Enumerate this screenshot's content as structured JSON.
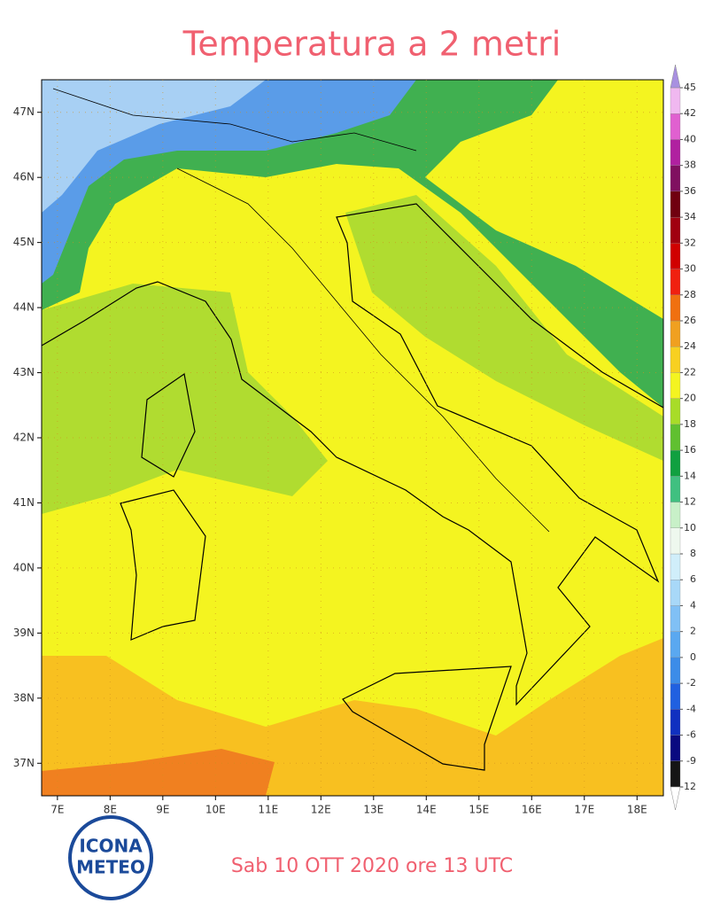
{
  "chart_data": {
    "type": "map",
    "title": "Temperatura a 2 metri",
    "subtitle": "Sab 10 OTT 2020 ore 13 UTC",
    "logo": {
      "line1": "ICONA",
      "line2": "METEO"
    },
    "xlim": [
      6.7,
      18.5
    ],
    "ylim": [
      36.5,
      47.5
    ],
    "xticks": [
      {
        "value": 7,
        "label": "7E"
      },
      {
        "value": 8,
        "label": "8E"
      },
      {
        "value": 9,
        "label": "9E"
      },
      {
        "value": 10,
        "label": "10E"
      },
      {
        "value": 11,
        "label": "11E"
      },
      {
        "value": 12,
        "label": "12E"
      },
      {
        "value": 13,
        "label": "13E"
      },
      {
        "value": 14,
        "label": "14E"
      },
      {
        "value": 15,
        "label": "15E"
      },
      {
        "value": 16,
        "label": "16E"
      },
      {
        "value": 17,
        "label": "17E"
      },
      {
        "value": 18,
        "label": "18E"
      }
    ],
    "yticks": [
      {
        "value": 37,
        "label": "37N"
      },
      {
        "value": 38,
        "label": "38N"
      },
      {
        "value": 39,
        "label": "39N"
      },
      {
        "value": 40,
        "label": "40N"
      },
      {
        "value": 41,
        "label": "41N"
      },
      {
        "value": 42,
        "label": "42N"
      },
      {
        "value": 43,
        "label": "43N"
      },
      {
        "value": 44,
        "label": "44N"
      },
      {
        "value": 45,
        "label": "45N"
      },
      {
        "value": 46,
        "label": "46N"
      },
      {
        "value": 47,
        "label": "47N"
      }
    ],
    "colorbar": {
      "ticks": [
        -12,
        -9,
        -6,
        -4,
        -2,
        0,
        2,
        4,
        6,
        8,
        10,
        12,
        14,
        16,
        18,
        20,
        22,
        24,
        26,
        28,
        30,
        32,
        34,
        36,
        38,
        40,
        42,
        45
      ],
      "colors": [
        "#151515",
        "#0a0a80",
        "#1030c0",
        "#2060e0",
        "#3c8ce8",
        "#5aa8f0",
        "#80c0f5",
        "#a8d8f8",
        "#d0eefa",
        "#eef8ee",
        "#c8f0c8",
        "#40c080",
        "#10a040",
        "#60c030",
        "#a8dc28",
        "#f4f420",
        "#f8d020",
        "#f0a020",
        "#f07010",
        "#f02010",
        "#d00000",
        "#a00010",
        "#700010",
        "#801060",
        "#b020a0",
        "#e060d0",
        "#f0b8f0"
      ],
      "under_color": "#ffffff",
      "over_color": "#a890e0"
    }
  }
}
